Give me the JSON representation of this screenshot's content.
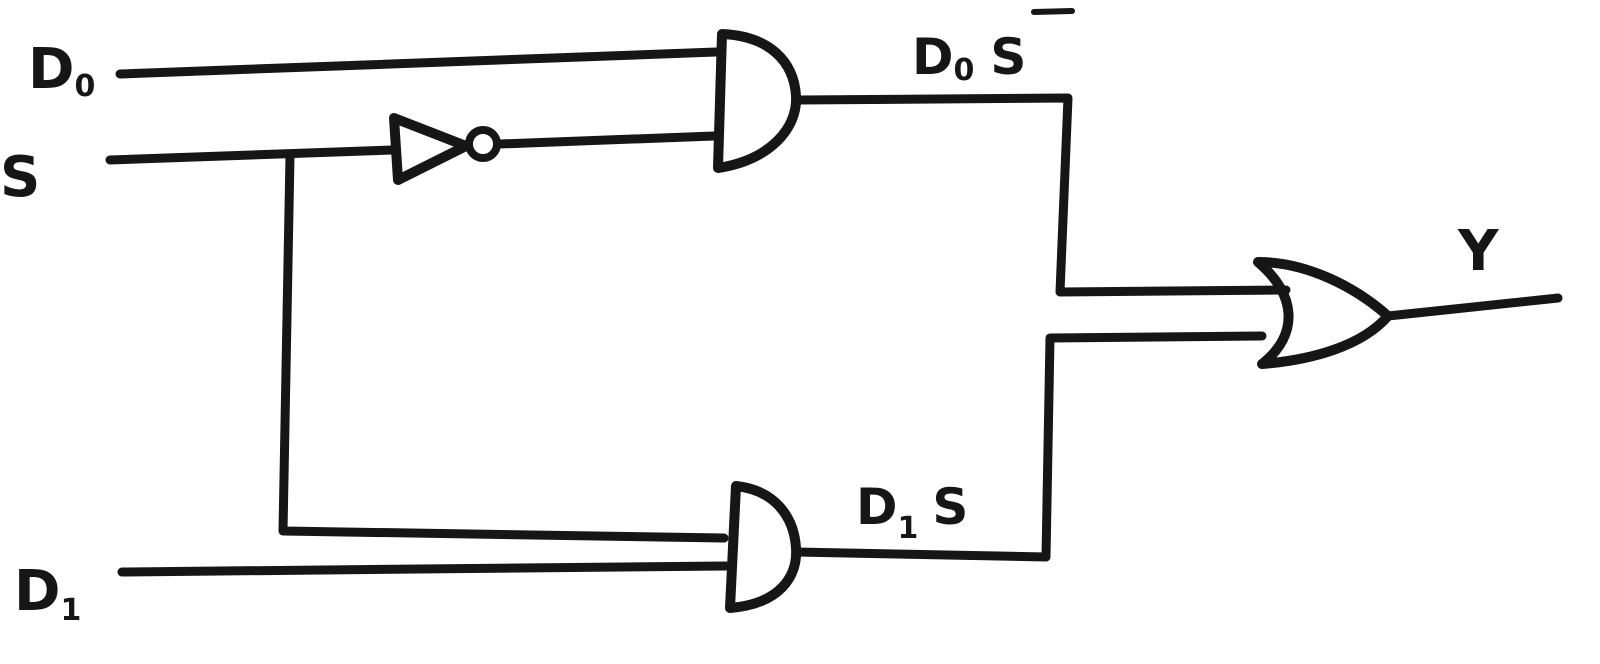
{
  "inputs": {
    "d0": {
      "main": "D",
      "sub": "0"
    },
    "s": "S",
    "d1": {
      "main": "D",
      "sub": "1"
    }
  },
  "terms": {
    "top": {
      "main": "D",
      "sub": "0",
      "tail": "S"
    },
    "bottom": {
      "main": "D",
      "sub": "1",
      "tail": "S"
    }
  },
  "output": "Y",
  "colors": {
    "ink": "#161616",
    "paper": "#ffffff"
  }
}
